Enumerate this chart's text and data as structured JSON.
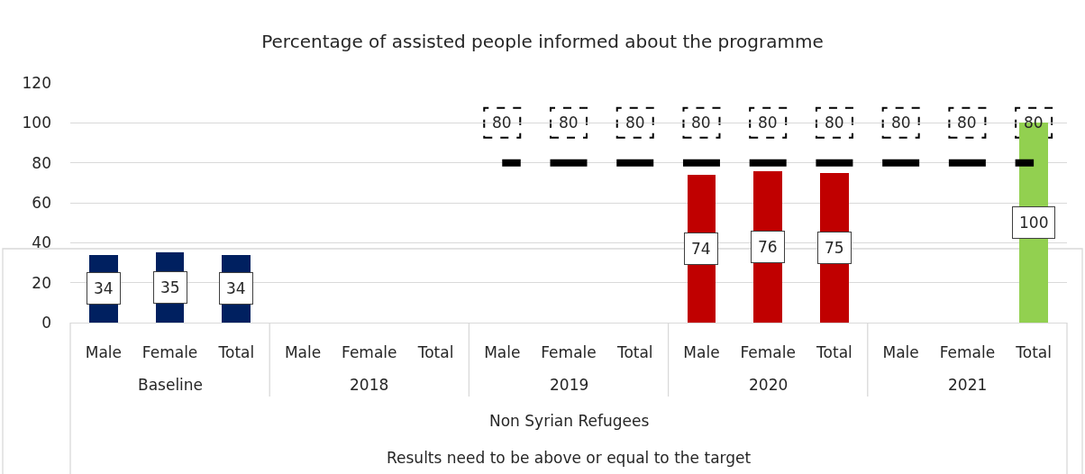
{
  "chart_data": {
    "type": "bar",
    "title": "Percentage of assisted people informed about the programme",
    "xlabel": "Non Syrian Refugees",
    "annotations": [
      "Baseline",
      "2018",
      "2019",
      "2020",
      "2021",
      "Results need to be above or equal to the target"
    ],
    "categories": [
      "Male",
      "Female",
      "Total",
      "Male",
      "Female",
      "Total",
      "Male",
      "Female",
      "Total",
      "Male",
      "Female",
      "Total",
      "Male",
      "Female",
      "Total"
    ],
    "series": [
      {
        "colors": [
          "#002060",
          "#002060",
          "#002060",
          null,
          null,
          null,
          null,
          null,
          null,
          "#c00000",
          "#c00000",
          "#c00000",
          null,
          null,
          "#92d050"
        ],
        "values": [
          34,
          35,
          34,
          null,
          null,
          null,
          null,
          null,
          null,
          74,
          76,
          75,
          null,
          null,
          100
        ]
      },
      {
        "type": "line",
        "line_style": "dashed",
        "color": "#000000",
        "values": [
          null,
          null,
          null,
          null,
          null,
          null,
          80,
          80,
          80,
          80,
          80,
          80,
          80,
          80,
          80
        ]
      }
    ],
    "ylim": [
      0,
      120
    ],
    "yticks": [
      0,
      20,
      40,
      60,
      80,
      100,
      120
    ],
    "grid": "y",
    "data_labels": true
  }
}
